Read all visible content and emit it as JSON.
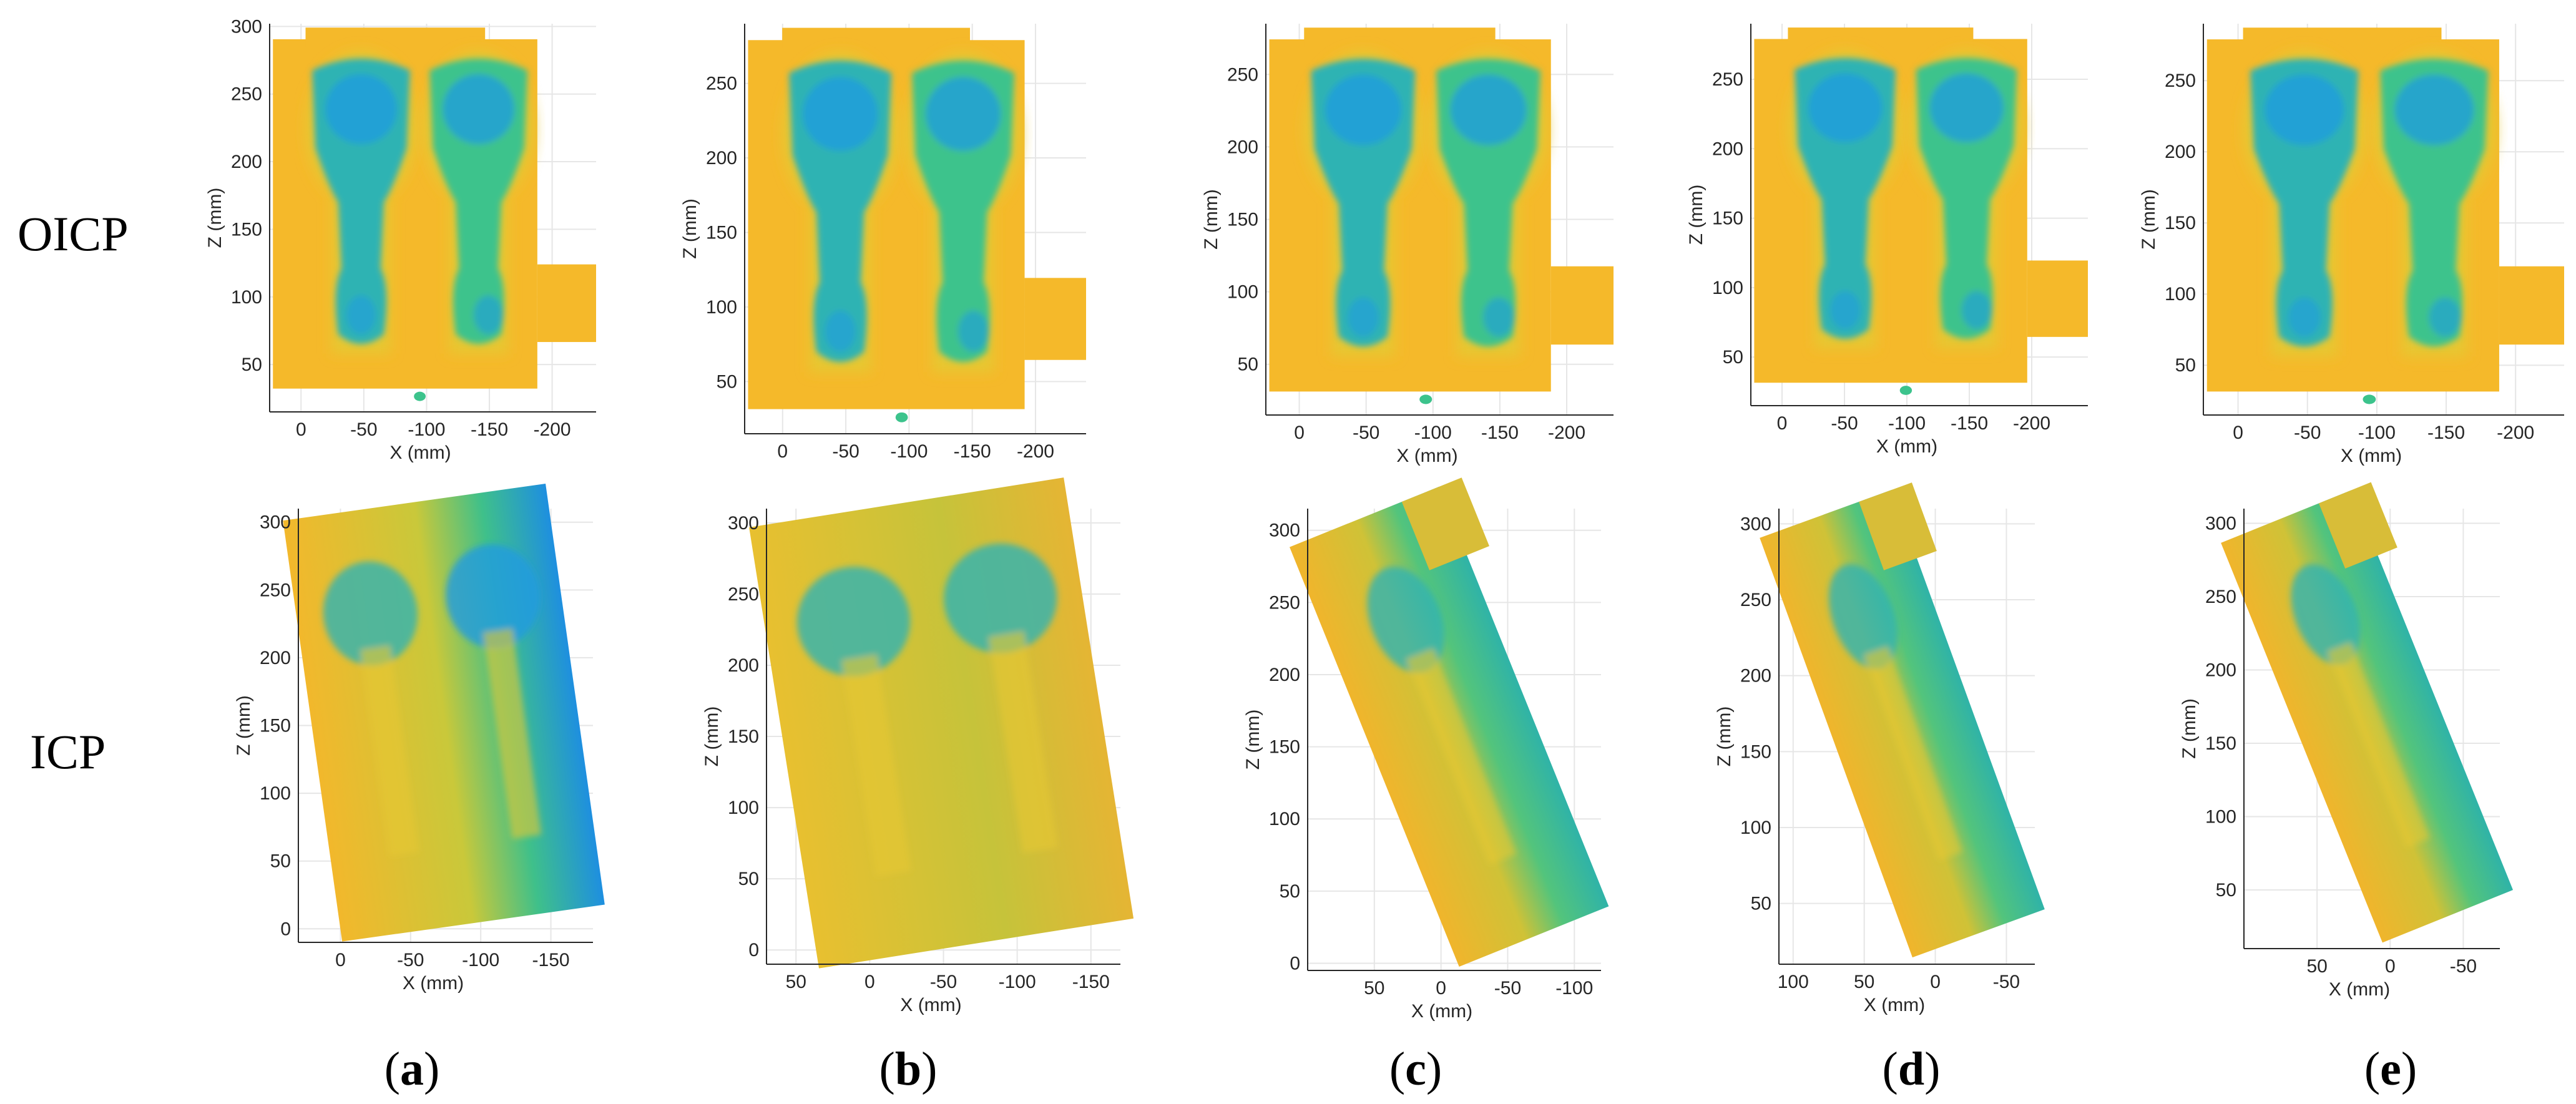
{
  "row_labels": {
    "top": "OICP",
    "bottom": "ICP"
  },
  "captions": [
    {
      "open": "(",
      "letter": "a",
      "close": ")"
    },
    {
      "open": "(",
      "letter": "b",
      "close": ")"
    },
    {
      "open": "(",
      "letter": "c",
      "close": ")"
    },
    {
      "open": "(",
      "letter": "d",
      "close": ")"
    },
    {
      "open": "(",
      "letter": "e",
      "close": ")"
    }
  ],
  "colors": {
    "background_yellow": "#f5b92a",
    "mid_yellow": "#e6c832",
    "green": "#3cc38c",
    "teal": "#2fb3b3",
    "blue": "#1f9be0",
    "axis": "#262626",
    "grid": "#e6e6e6"
  },
  "chart_data": [
    {
      "type": "heatmap",
      "panel": "a-top",
      "xlabel": "X (mm)",
      "ylabel": "Z (mm)",
      "xticks": [
        0,
        -50,
        -100,
        -150,
        -200
      ],
      "yticks": [
        50,
        100,
        150,
        200,
        250,
        300
      ],
      "xlim": [
        25,
        -235
      ],
      "ylim": [
        15,
        302
      ]
    },
    {
      "type": "heatmap",
      "panel": "b-top",
      "xlabel": "",
      "ylabel": "Z (mm)",
      "xticks": [
        0,
        -50,
        -100,
        -150,
        -200
      ],
      "yticks": [
        50,
        100,
        150,
        200,
        250
      ],
      "xlim": [
        30,
        -240
      ],
      "ylim": [
        15,
        290
      ]
    },
    {
      "type": "heatmap",
      "panel": "c-top",
      "xlabel": "X (mm)",
      "ylabel": "Z (mm)",
      "xticks": [
        0,
        -50,
        -100,
        -150,
        -200
      ],
      "yticks": [
        50,
        100,
        150,
        200,
        250
      ],
      "xlim": [
        25,
        -235
      ],
      "ylim": [
        15,
        285
      ]
    },
    {
      "type": "heatmap",
      "panel": "d-top",
      "xlabel": "X (mm)",
      "ylabel": "Z (mm)",
      "xticks": [
        0,
        -50,
        -100,
        -150,
        -200
      ],
      "yticks": [
        50,
        100,
        150,
        200,
        250
      ],
      "xlim": [
        25,
        -245
      ],
      "ylim": [
        15,
        290
      ]
    },
    {
      "type": "heatmap",
      "panel": "e-top",
      "xlabel": "X (mm)",
      "ylabel": "Z (mm)",
      "xticks": [
        0,
        -50,
        -100,
        -150,
        -200
      ],
      "yticks": [
        50,
        100,
        150,
        200,
        250
      ],
      "xlim": [
        25,
        -235
      ],
      "ylim": [
        15,
        290
      ]
    },
    {
      "type": "heatmap",
      "panel": "a-bottom",
      "xlabel": "X (mm)",
      "ylabel": "Z (mm)",
      "xticks": [
        0,
        -50,
        -100,
        -150
      ],
      "yticks": [
        0,
        50,
        100,
        150,
        200,
        250,
        300
      ],
      "xlim": [
        30,
        -180
      ],
      "ylim": [
        -10,
        310
      ]
    },
    {
      "type": "heatmap",
      "panel": "b-bottom",
      "xlabel": "X (mm)",
      "ylabel": "Z (mm)",
      "xticks": [
        50,
        0,
        -50,
        -100,
        -150
      ],
      "yticks": [
        0,
        50,
        100,
        150,
        200,
        250,
        300
      ],
      "xlim": [
        70,
        -170
      ],
      "ylim": [
        -10,
        310
      ]
    },
    {
      "type": "heatmap",
      "panel": "c-bottom",
      "xlabel": "X (mm)",
      "ylabel": "Z (mm)",
      "xticks": [
        50,
        0,
        -50,
        -100
      ],
      "yticks": [
        0,
        50,
        100,
        150,
        200,
        250,
        300
      ],
      "xlim": [
        100,
        -120
      ],
      "ylim": [
        -5,
        315
      ]
    },
    {
      "type": "heatmap",
      "panel": "d-bottom",
      "xlabel": "X (mm)",
      "ylabel": "Z (mm)",
      "xticks": [
        100,
        50,
        0,
        -50
      ],
      "yticks": [
        50,
        100,
        150,
        200,
        250,
        300
      ],
      "xlim": [
        110,
        -70
      ],
      "ylim": [
        10,
        310
      ]
    },
    {
      "type": "heatmap",
      "panel": "e-bottom",
      "xlabel": "X (mm)",
      "ylabel": "Z (mm)",
      "xticks": [
        50,
        0,
        -50
      ],
      "yticks": [
        50,
        100,
        150,
        200,
        250,
        300
      ],
      "xlim": [
        100,
        -75
      ],
      "ylim": [
        10,
        310
      ]
    }
  ]
}
